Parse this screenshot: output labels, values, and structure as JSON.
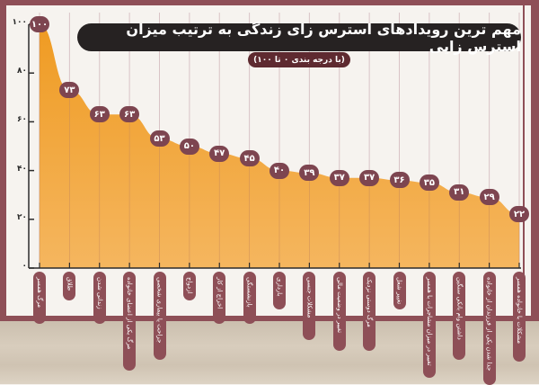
{
  "header": {
    "title": "مهم ترین رویدادهای استرس زای زندگی به ترتیب میزان استرس زایی",
    "subtitle": "(با درجه بندی ۰ تا ۱۰۰)"
  },
  "y_axis": {
    "ticks": [
      "۰",
      "۲۰",
      "۴۰",
      "۶۰",
      "۸۰",
      "۱۰۰"
    ]
  },
  "badges": [
    "۱۰۰",
    "۷۳",
    "۶۳",
    "۶۳",
    "۵۳",
    "۵۰",
    "۴۷",
    "۴۵",
    "۴۰",
    "۳۹",
    "۳۷",
    "۳۷",
    "۳۶",
    "۳۵",
    "۳۱",
    "۲۹",
    "۲۲"
  ],
  "labels": [
    "مرگ همسر",
    "طلاق",
    "زندانی شدن",
    "مرگ یکی از اعضای خانواده",
    "جراحت یا بیماری شخصی",
    "ازدواج",
    "اخراج از کار",
    "بازنشستگی",
    "بارداری",
    "مشکلات جنسی",
    "تغییر در وضعیت مالی",
    "مرگ دوستی نزدیک",
    "تغییر شغل",
    "تغییر در میزان مشاجرات با همسر",
    "داشتن وام بانکی سنگین",
    "جدا شدن یکی از فرزندان از خانواده",
    "مشکلات با خانواده همسر"
  ],
  "colors": {
    "frame": "#8e4f57",
    "area_top": "#ef9b22",
    "area_bottom": "#f5b65f",
    "badge": "#7d4550",
    "title_bg": "#262222",
    "subtitle_bg": "#5e2a30",
    "background": "#f6f3ef"
  },
  "chart_data": {
    "type": "area",
    "title": "مهم ترین رویدادهای استرس زای زندگی به ترتیب میزان استرس زایی",
    "subtitle": "(با درجه بندی ۰ تا ۱۰۰)",
    "categories": [
      "مرگ همسر",
      "طلاق",
      "زندانی شدن",
      "مرگ یکی از اعضای خانواده",
      "جراحت یا بیماری شخصی",
      "ازدواج",
      "اخراج از کار",
      "بازنشستگی",
      "بارداری",
      "مشکلات جنسی",
      "تغییر در وضعیت مالی",
      "مرگ دوستی نزدیک",
      "تغییر شغل",
      "تغییر در میزان مشاجرات با همسر",
      "داشتن وام بانکی سنگین",
      "جدا شدن یکی از فرزندان از خانواده",
      "مشکلات با خانواده همسر"
    ],
    "values": [
      100,
      73,
      63,
      63,
      53,
      50,
      47,
      45,
      40,
      39,
      37,
      37,
      36,
      35,
      31,
      29,
      22
    ],
    "xlabel": "",
    "ylabel": "",
    "ylim": [
      0,
      100
    ],
    "yticks": [
      0,
      20,
      40,
      60,
      80,
      100
    ],
    "grid": "vertical lines at each category",
    "legend": "none"
  }
}
